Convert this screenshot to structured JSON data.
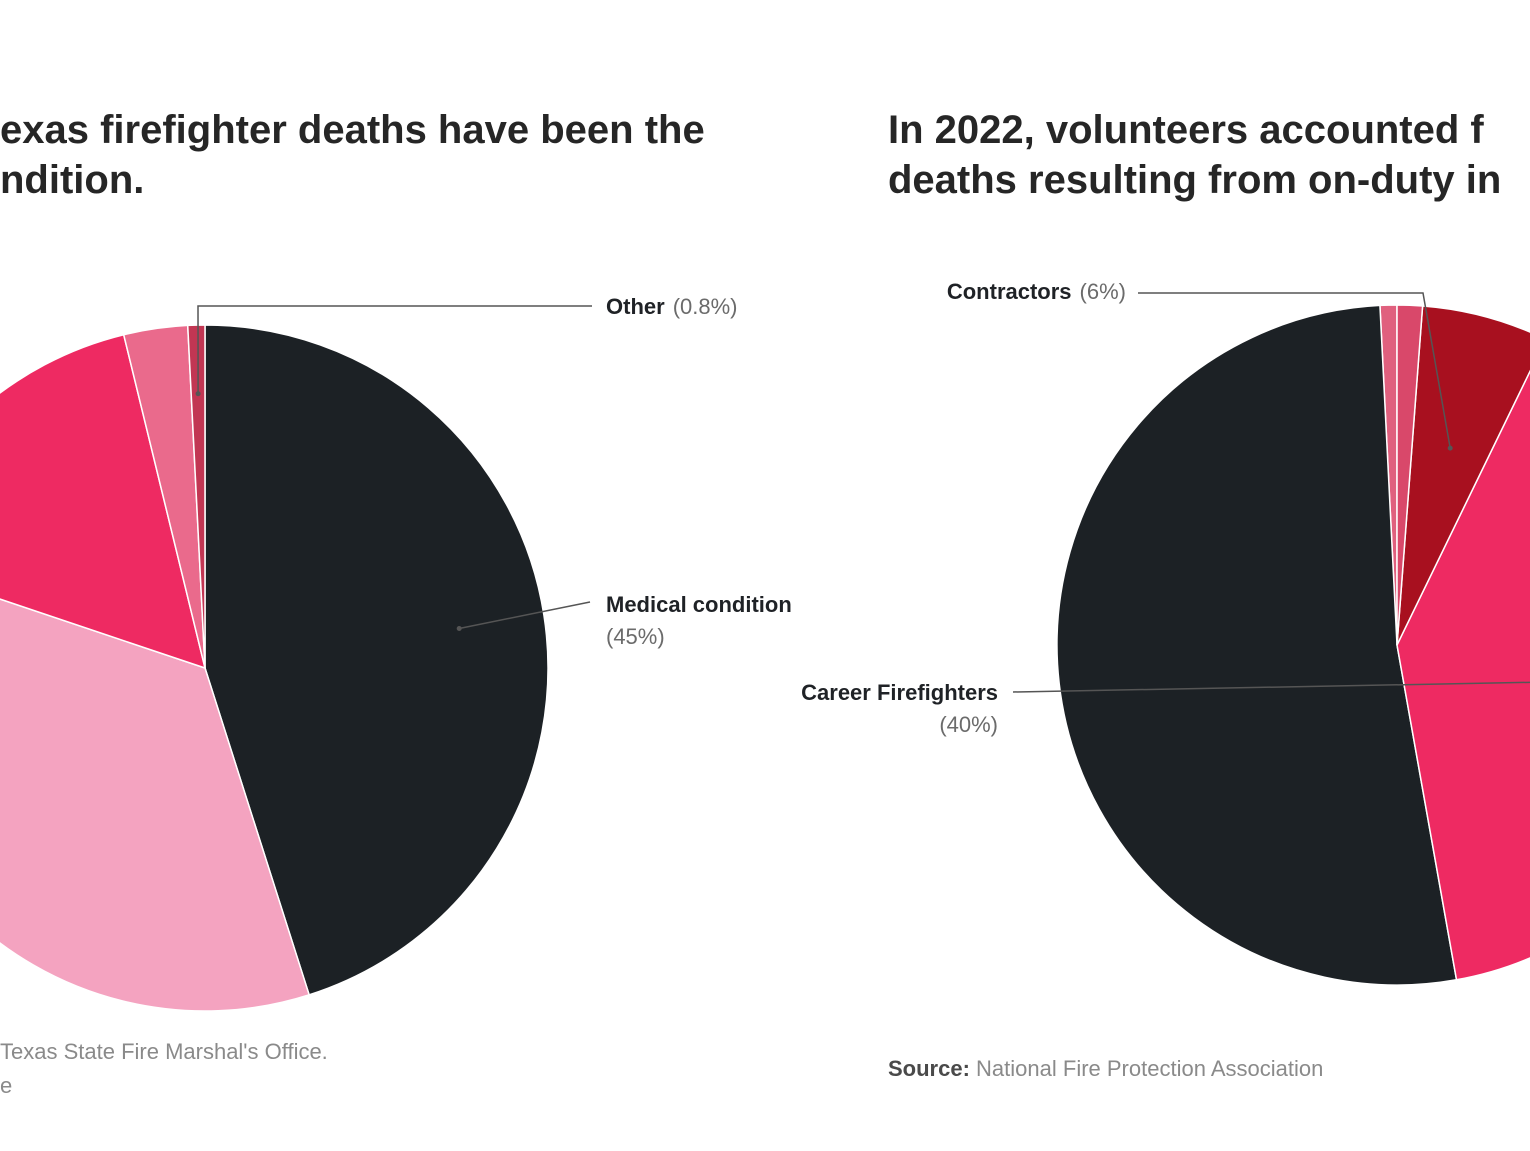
{
  "chart_data": [
    {
      "type": "pie",
      "title": "exas firefighter deaths have been the\nndition.",
      "slices": [
        {
          "label": "Medical condition",
          "value": 45,
          "value_label": "(45%)",
          "color": "#1c2125",
          "show_label": true
        },
        {
          "label": "",
          "value": 35,
          "value_label": "",
          "color": "#f4a3c0",
          "show_label": false
        },
        {
          "label": "",
          "value": 16,
          "value_label": "",
          "color": "#ee2a62",
          "show_label": false
        },
        {
          "label": "",
          "value": 3,
          "value_label": "",
          "color": "#ea6a8c",
          "show_label": false
        },
        {
          "label": "Other",
          "value": 0.8,
          "value_label": "(0.8%)",
          "color": "#c23653",
          "show_label": true
        }
      ],
      "source_lines": [
        "Texas State Fire Marshal's Office.",
        "e"
      ]
    },
    {
      "type": "pie",
      "title": "In 2022, volunteers accounted f\ndeaths resulting from on-duty in",
      "slices": [
        {
          "label": "",
          "value": 0.8,
          "value_label": "",
          "color": "#e0607e",
          "show_label": false
        },
        {
          "label": "",
          "value": 52,
          "value_label": "",
          "color": "#1c2125",
          "show_label": false
        },
        {
          "label": "Career Firefighters",
          "value": 40,
          "value_label": "(40%)",
          "color": "#ee2a62",
          "show_label": true
        },
        {
          "label": "Contractors",
          "value": 6,
          "value_label": "(6%)",
          "color": "#a8101f",
          "show_label": true
        },
        {
          "label": "",
          "value": 1.2,
          "value_label": "",
          "color": "#d9486a",
          "show_label": false
        }
      ],
      "source_label": "Source:",
      "source_text": "National Fire Protection Association"
    }
  ]
}
